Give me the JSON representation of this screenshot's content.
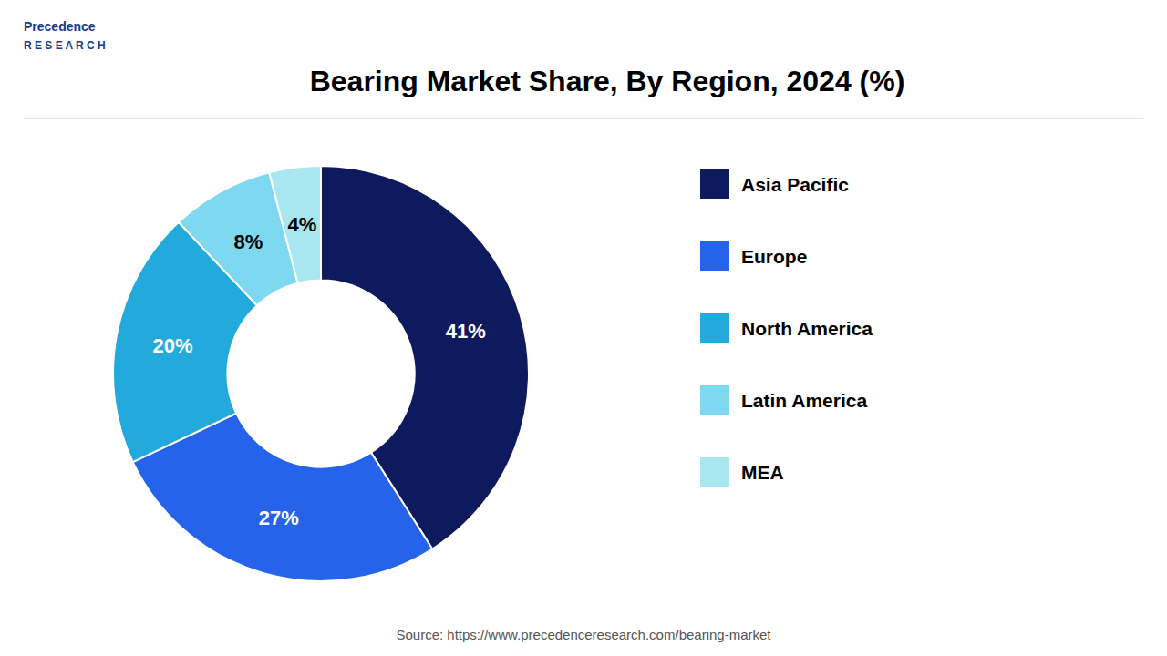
{
  "chart_data": {
    "type": "donut",
    "title": "Bearing Market Share, By Region, 2024 (%)",
    "categories": [
      "Asia Pacific",
      "Europe",
      "North America",
      "Latin America",
      "MEA"
    ],
    "values": [
      41,
      27,
      20,
      8,
      4
    ],
    "colors": [
      "#0d1b5e",
      "#2563eb",
      "#22aadd",
      "#7dd8f0",
      "#a8e6f0"
    ],
    "data_labels": true,
    "value_labels": [
      "41%",
      "27%",
      "20%",
      "8%",
      "4%"
    ],
    "legend": "right",
    "annotations": [
      "Source: https://www.precedenceresearch.com/bearing-market",
      "Precedence",
      "R E S E A R C H"
    ]
  }
}
